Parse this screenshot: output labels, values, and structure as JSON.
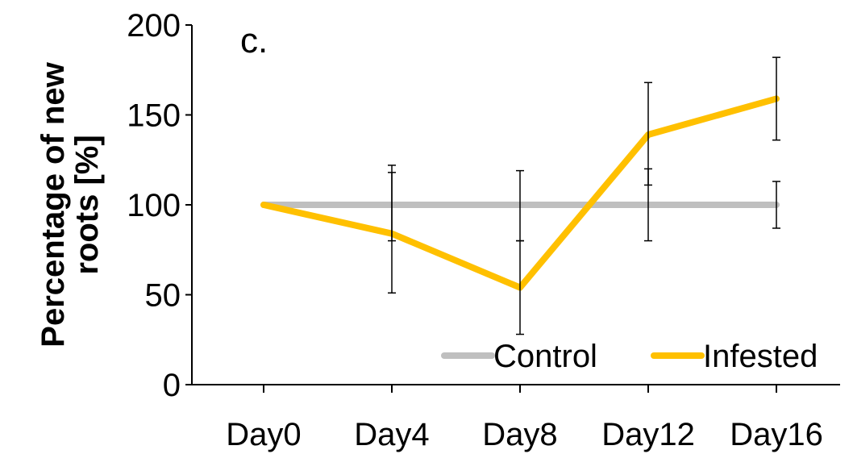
{
  "chart_data": {
    "type": "line",
    "panel_label": "c.",
    "title": "",
    "xlabel": "",
    "ylabel": "Percentage of new roots [%]",
    "ylabel_lines": [
      "Percentage of new",
      "roots [%]"
    ],
    "categories": [
      "Day0",
      "Day4",
      "Day8",
      "Day12",
      "Day16"
    ],
    "ylim": [
      0,
      200
    ],
    "yticks": [
      0,
      50,
      100,
      150,
      200
    ],
    "grid": false,
    "legend": {
      "position": "bottom-right",
      "orientation": "horizontal"
    },
    "series": [
      {
        "name": "Control",
        "color": "#BFBFBF",
        "values": [
          100,
          100,
          100,
          100,
          100
        ],
        "error_low": [
          100,
          80,
          80,
          80,
          87
        ],
        "error_high": [
          100,
          118,
          119,
          120,
          113
        ]
      },
      {
        "name": "Infested",
        "color": "#FFC000",
        "values": [
          100,
          84,
          54,
          139,
          159
        ],
        "error_low": [
          100,
          51,
          28,
          111,
          136
        ],
        "error_high": [
          100,
          122,
          80,
          168,
          182
        ]
      }
    ]
  }
}
